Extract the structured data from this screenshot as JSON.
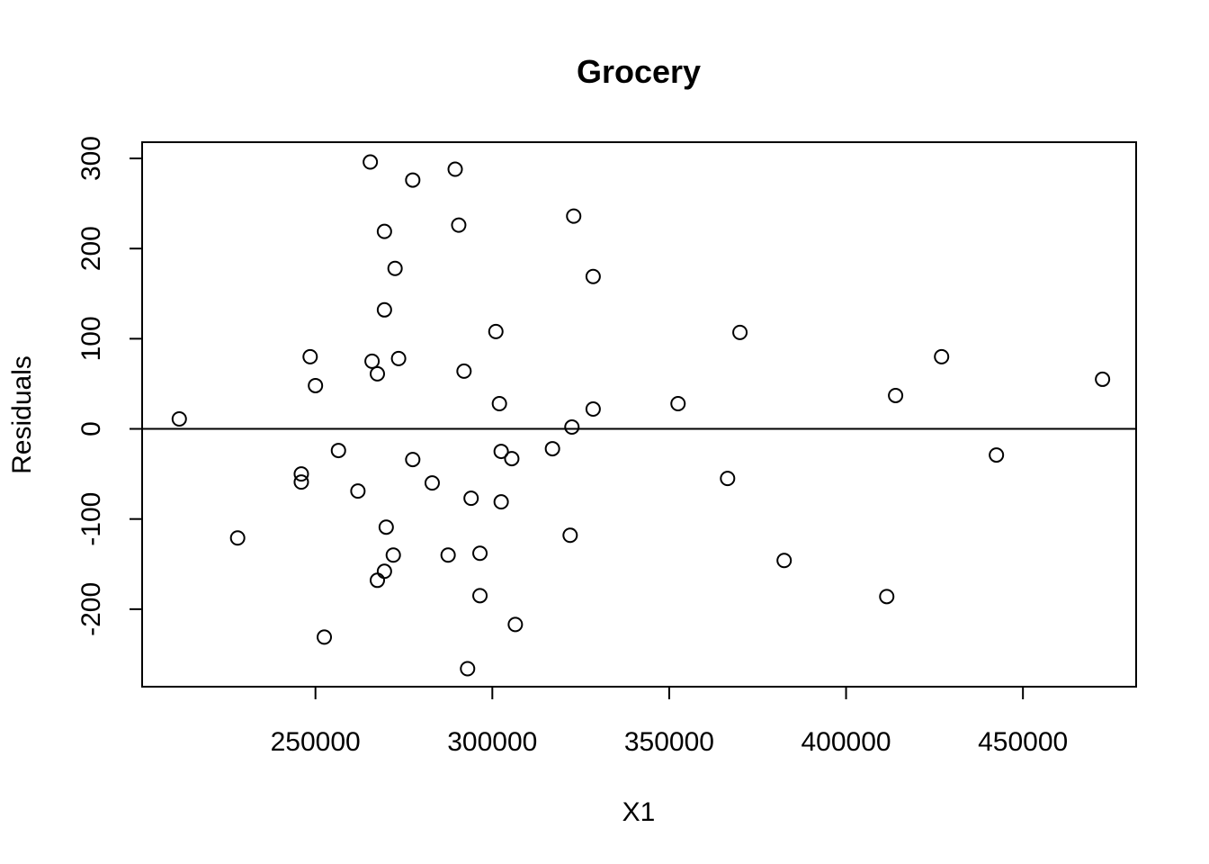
{
  "chart_data": {
    "type": "scatter",
    "title": "Grocery",
    "xlabel": "X1",
    "ylabel": "Residuals",
    "xlim": [
      201000,
      482000
    ],
    "ylim": [
      -286,
      318
    ],
    "xticks": [
      250000,
      300000,
      350000,
      400000,
      450000
    ],
    "yticks": [
      -200,
      -100,
      0,
      100,
      200,
      300
    ],
    "hline": 0,
    "grid": false,
    "x": [
      265500,
      289500,
      277500,
      323000,
      290500,
      269500,
      328500,
      272500,
      269500,
      301000,
      370000,
      248500,
      273500,
      266000,
      427000,
      292000,
      267500,
      472500,
      250000,
      414000,
      302000,
      352500,
      328500,
      211500,
      322500,
      256500,
      317000,
      302500,
      277500,
      305500,
      442500,
      246000,
      246000,
      283000,
      366500,
      262000,
      294000,
      302500,
      228000,
      270000,
      322000,
      382500,
      287500,
      272000,
      296500,
      269500,
      267500,
      296500,
      411500,
      306500,
      252500,
      293000
    ],
    "y": [
      296,
      288,
      276,
      236,
      226,
      219,
      169,
      178,
      132,
      108,
      107,
      80,
      78,
      75,
      80,
      64,
      61,
      55,
      48,
      37,
      28,
      28,
      22,
      11,
      2,
      -24,
      -22,
      -25,
      -34,
      -33,
      -29,
      -50,
      -59,
      -60,
      -55,
      -69,
      -77,
      -81,
      -121,
      -109,
      -118,
      -146,
      -140,
      -140,
      -138,
      -158,
      -168,
      -185,
      -186,
      -217,
      -231,
      -266
    ]
  }
}
